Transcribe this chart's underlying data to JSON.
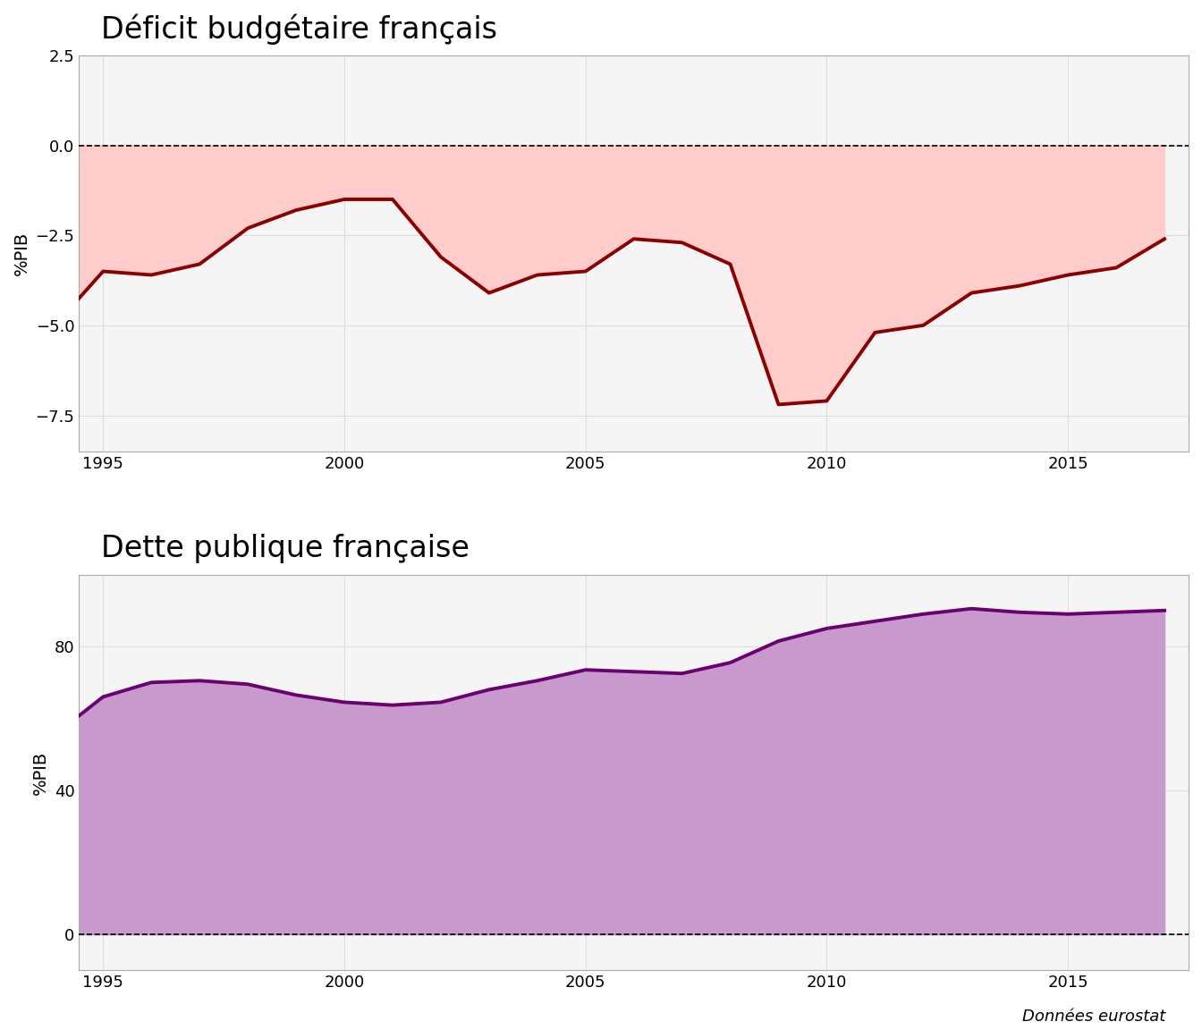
{
  "title1": "Déficit budgétaire français",
  "title2": "Dette publique française",
  "ylabel": "%PIB",
  "source": "Données eurostat",
  "deficit_years": [
    1994,
    1995,
    1996,
    1997,
    1998,
    1999,
    2000,
    2001,
    2002,
    2003,
    2004,
    2005,
    2006,
    2007,
    2008,
    2009,
    2010,
    2011,
    2012,
    2013,
    2014,
    2015,
    2016,
    2017
  ],
  "deficit_values": [
    -5.0,
    -3.5,
    -3.6,
    -3.3,
    -2.3,
    -1.8,
    -1.5,
    -1.5,
    -3.1,
    -4.1,
    -3.6,
    -3.5,
    -2.6,
    -2.7,
    -3.3,
    -7.2,
    -7.1,
    -5.2,
    -5.0,
    -4.1,
    -3.9,
    -3.6,
    -3.4,
    -2.6
  ],
  "debt_years": [
    1994,
    1995,
    1996,
    1997,
    1998,
    1999,
    2000,
    2001,
    2002,
    2003,
    2004,
    2005,
    2006,
    2007,
    2008,
    2009,
    2010,
    2011,
    2012,
    2013,
    2014,
    2015,
    2016,
    2017
  ],
  "debt_values": [
    55.5,
    66.0,
    70.0,
    70.5,
    69.5,
    66.5,
    64.5,
    63.7,
    64.5,
    68.0,
    70.5,
    73.5,
    73.0,
    72.5,
    75.5,
    81.5,
    85.0,
    87.0,
    89.0,
    90.5,
    89.5,
    89.0,
    89.5,
    90.0
  ],
  "deficit_line_color": "#8B0000",
  "deficit_fill_color": "#FFCCCC",
  "debt_line_color": "#6B0070",
  "debt_fill_color": "#C899CC",
  "bg_color": "#FFFFFF",
  "panel_bg_color": "#F5F5F5",
  "grid_color": "#DDDDDD",
  "deficit_ylim": [
    -8.5,
    2.5
  ],
  "deficit_yticks": [
    2.5,
    0.0,
    -2.5,
    -5.0,
    -7.5
  ],
  "debt_ylim": [
    -10,
    100
  ],
  "debt_yticks": [
    0,
    40,
    80
  ],
  "xticks": [
    1995,
    2000,
    2005,
    2010,
    2015
  ],
  "title_fontsize": 24,
  "label_fontsize": 14,
  "tick_fontsize": 13,
  "source_fontsize": 13
}
